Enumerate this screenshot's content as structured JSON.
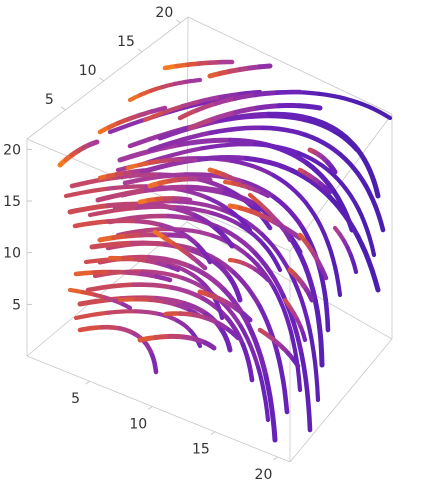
{
  "chart_data": {
    "type": "3d-stream",
    "title": "",
    "xlabel": "",
    "ylabel": "",
    "zlabel": "",
    "x": {
      "ticks": [
        5,
        10,
        15,
        20
      ],
      "range": [
        0,
        21
      ]
    },
    "y": {
      "ticks": [
        5,
        10,
        15,
        20
      ],
      "range": [
        0,
        21
      ]
    },
    "z": {
      "ticks": [
        5,
        10,
        15,
        20
      ],
      "range": [
        0,
        21
      ]
    },
    "colors": {
      "orange": "#ff8a16",
      "red": "#d8503f",
      "magenta": "#a73b9a",
      "purple": "#6e22b9",
      "indigo": "#4b1eb0"
    },
    "grid": false,
    "legend": "none",
    "stream_style": "thick tubes colored from orange (short, at top-front) to purple (long, bending down at right)"
  }
}
